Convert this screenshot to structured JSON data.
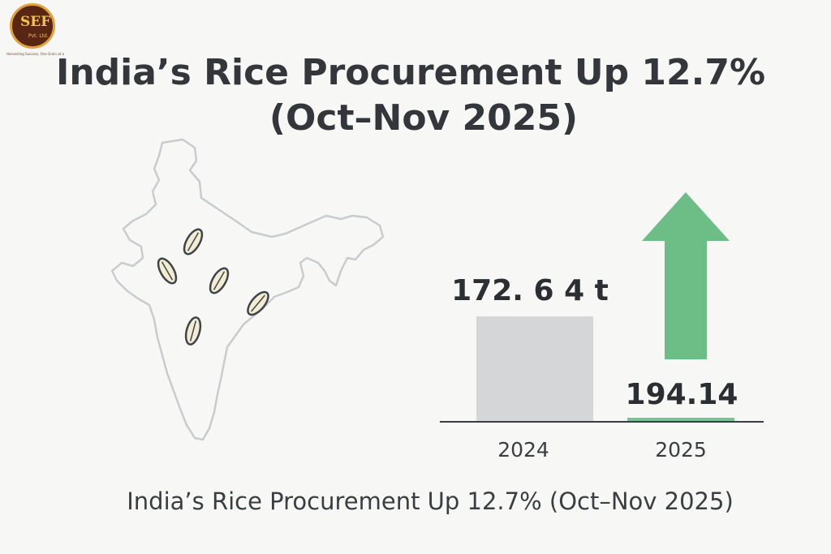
{
  "logo": {
    "text": "SEF",
    "sub": "Pvt. Ltd.",
    "tagline": "Harvesting Success, One Grain at a Time"
  },
  "title": {
    "line1": "India’s Rice Procurement Up 12.7%",
    "line2": "(Oct–Nov 2025)"
  },
  "caption": "India’s Rice Procurement Up 12.7% (Oct–Nov 2025)",
  "chart_data": {
    "type": "bar",
    "categories": [
      "2024",
      "2025"
    ],
    "values": [
      172.64,
      194.14
    ],
    "value_labels": [
      "172. 6 4 t",
      "194.14"
    ],
    "title": "India’s Rice Procurement Up 12.7% (Oct–Nov 2025)",
    "xlabel": "",
    "ylabel": "",
    "colors": {
      "bar_2024": "#d4d6d8",
      "bar_2025": "#7cc394",
      "arrow": "#6dbd86",
      "axis": "#3a3e42"
    },
    "grid": false,
    "legend": "none"
  },
  "map_icons": [
    "india-outline-icon",
    "rice-grain-icon"
  ]
}
